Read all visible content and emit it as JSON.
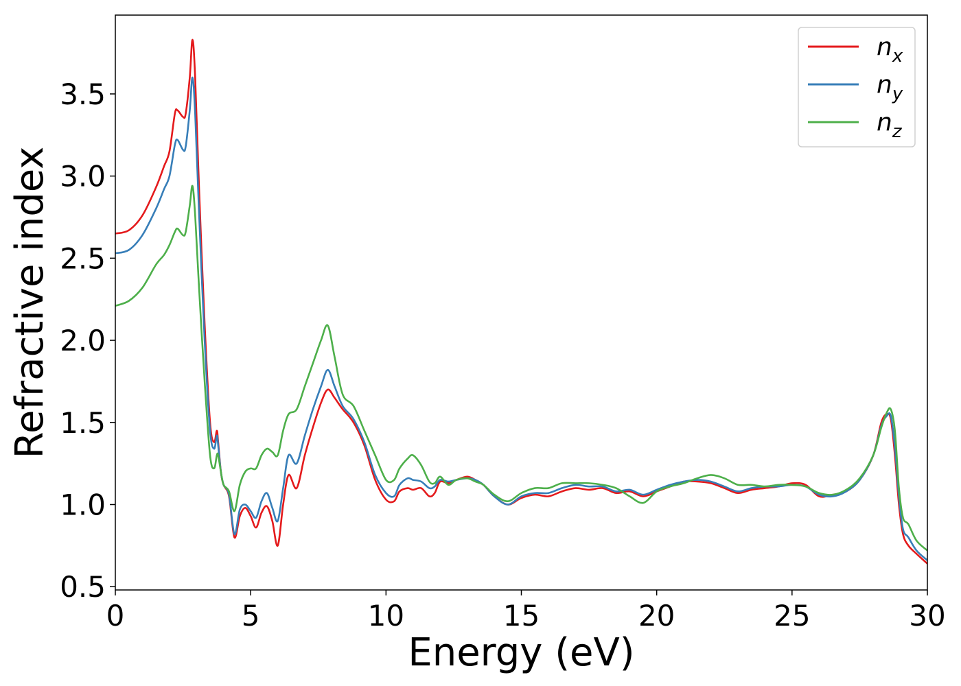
{
  "chart_data": {
    "type": "line",
    "title": "",
    "xlabel": "Energy (eV)",
    "ylabel": "Refractive index",
    "xlim": [
      0,
      30
    ],
    "ylim": [
      0.48,
      3.98
    ],
    "xticks": [
      0,
      5,
      10,
      15,
      20,
      25,
      30
    ],
    "xtick_labels": [
      "0",
      "5",
      "10",
      "15",
      "20",
      "25",
      "30"
    ],
    "yticks": [
      0.5,
      1.0,
      1.5,
      2.0,
      2.5,
      3.0,
      3.5
    ],
    "ytick_labels": [
      "0.5",
      "1.0",
      "1.5",
      "2.0",
      "2.5",
      "3.0",
      "3.5"
    ],
    "grid": false,
    "legend_position": "top-right",
    "series": [
      {
        "name": "n_x",
        "legend_main": "n",
        "legend_sub": "x",
        "color": "#e41a1c",
        "x": [
          0,
          0.5,
          1.0,
          1.5,
          1.8,
          2.0,
          2.2,
          2.3,
          2.5,
          2.6,
          2.75,
          2.85,
          2.95,
          3.1,
          3.3,
          3.5,
          3.65,
          3.75,
          3.8,
          3.9,
          4.0,
          4.2,
          4.4,
          4.6,
          4.8,
          5.0,
          5.2,
          5.4,
          5.6,
          5.8,
          6.0,
          6.2,
          6.4,
          6.7,
          7.0,
          7.3,
          7.6,
          7.85,
          8.1,
          8.4,
          8.8,
          9.2,
          9.6,
          10.0,
          10.3,
          10.5,
          10.8,
          11.0,
          11.3,
          11.6,
          11.8,
          12.0,
          12.3,
          12.6,
          13.0,
          13.3,
          13.6,
          14.0,
          14.5,
          15.0,
          15.5,
          16.0,
          16.5,
          17.0,
          17.5,
          18.0,
          18.5,
          19.0,
          19.5,
          20.0,
          20.5,
          21.0,
          21.5,
          22.0,
          22.5,
          23.0,
          23.5,
          24.0,
          24.5,
          25.0,
          25.5,
          26.0,
          26.5,
          27.0,
          27.5,
          28.0,
          28.3,
          28.5,
          28.65,
          28.8,
          28.95,
          29.1,
          29.3,
          29.6,
          30.0
        ],
        "values": [
          2.65,
          2.67,
          2.76,
          2.93,
          3.06,
          3.15,
          3.38,
          3.4,
          3.36,
          3.38,
          3.6,
          3.83,
          3.6,
          2.9,
          2.1,
          1.5,
          1.38,
          1.45,
          1.38,
          1.2,
          1.12,
          1.05,
          0.8,
          0.93,
          0.98,
          0.93,
          0.86,
          0.95,
          0.99,
          0.9,
          0.75,
          1.0,
          1.18,
          1.1,
          1.3,
          1.47,
          1.62,
          1.7,
          1.65,
          1.58,
          1.5,
          1.36,
          1.15,
          1.03,
          1.02,
          1.08,
          1.1,
          1.09,
          1.1,
          1.05,
          1.07,
          1.14,
          1.13,
          1.15,
          1.17,
          1.15,
          1.12,
          1.05,
          1.0,
          1.04,
          1.06,
          1.05,
          1.08,
          1.1,
          1.09,
          1.1,
          1.07,
          1.08,
          1.05,
          1.08,
          1.11,
          1.14,
          1.14,
          1.13,
          1.1,
          1.07,
          1.09,
          1.1,
          1.11,
          1.13,
          1.12,
          1.05,
          1.06,
          1.08,
          1.15,
          1.3,
          1.5,
          1.55,
          1.52,
          1.3,
          1.0,
          0.82,
          0.75,
          0.7,
          0.64
        ]
      },
      {
        "name": "n_y",
        "legend_main": "n",
        "legend_sub": "y",
        "color": "#377eb8",
        "x": [
          0,
          0.5,
          1.0,
          1.5,
          1.8,
          2.0,
          2.2,
          2.3,
          2.5,
          2.6,
          2.75,
          2.85,
          2.95,
          3.1,
          3.3,
          3.5,
          3.65,
          3.75,
          3.8,
          3.9,
          4.0,
          4.2,
          4.4,
          4.6,
          4.8,
          5.0,
          5.2,
          5.4,
          5.6,
          5.8,
          6.0,
          6.2,
          6.4,
          6.7,
          7.0,
          7.3,
          7.6,
          7.85,
          8.1,
          8.4,
          8.8,
          9.2,
          9.6,
          10.0,
          10.3,
          10.5,
          10.8,
          11.0,
          11.3,
          11.6,
          11.8,
          12.0,
          12.3,
          12.6,
          13.0,
          13.3,
          13.6,
          14.0,
          14.5,
          15.0,
          15.5,
          16.0,
          16.5,
          17.0,
          17.5,
          18.0,
          18.5,
          19.0,
          19.5,
          20.0,
          20.5,
          21.0,
          21.5,
          22.0,
          22.5,
          23.0,
          23.5,
          24.0,
          24.5,
          25.0,
          25.5,
          26.0,
          26.5,
          27.0,
          27.5,
          28.0,
          28.3,
          28.5,
          28.65,
          28.8,
          28.95,
          29.1,
          29.3,
          29.6,
          30.0
        ],
        "values": [
          2.53,
          2.55,
          2.64,
          2.8,
          2.92,
          3.0,
          3.19,
          3.22,
          3.16,
          3.18,
          3.4,
          3.6,
          3.38,
          2.75,
          2.0,
          1.45,
          1.34,
          1.42,
          1.36,
          1.2,
          1.12,
          1.06,
          0.82,
          0.97,
          1.0,
          0.96,
          0.92,
          1.02,
          1.07,
          0.98,
          0.9,
          1.1,
          1.3,
          1.25,
          1.42,
          1.58,
          1.72,
          1.82,
          1.72,
          1.6,
          1.52,
          1.38,
          1.18,
          1.07,
          1.05,
          1.12,
          1.16,
          1.15,
          1.14,
          1.1,
          1.11,
          1.15,
          1.14,
          1.15,
          1.16,
          1.15,
          1.12,
          1.05,
          1.0,
          1.05,
          1.07,
          1.07,
          1.1,
          1.12,
          1.11,
          1.11,
          1.08,
          1.09,
          1.06,
          1.09,
          1.12,
          1.14,
          1.15,
          1.14,
          1.11,
          1.08,
          1.1,
          1.11,
          1.11,
          1.12,
          1.11,
          1.06,
          1.05,
          1.08,
          1.15,
          1.3,
          1.48,
          1.54,
          1.54,
          1.35,
          1.05,
          0.85,
          0.8,
          0.72,
          0.66
        ]
      },
      {
        "name": "n_z",
        "legend_main": "n",
        "legend_sub": "z",
        "color": "#4daf4a",
        "x": [
          0,
          0.5,
          1.0,
          1.5,
          1.8,
          2.0,
          2.2,
          2.3,
          2.5,
          2.6,
          2.75,
          2.85,
          2.95,
          3.1,
          3.3,
          3.5,
          3.65,
          3.75,
          3.8,
          3.9,
          4.0,
          4.2,
          4.4,
          4.6,
          4.8,
          5.0,
          5.2,
          5.4,
          5.6,
          5.8,
          6.0,
          6.2,
          6.4,
          6.7,
          7.0,
          7.3,
          7.6,
          7.85,
          8.1,
          8.4,
          8.8,
          9.2,
          9.6,
          10.0,
          10.3,
          10.5,
          10.8,
          11.0,
          11.3,
          11.6,
          11.8,
          12.0,
          12.3,
          12.6,
          13.0,
          13.3,
          13.6,
          14.0,
          14.5,
          15.0,
          15.5,
          16.0,
          16.5,
          17.0,
          17.5,
          18.0,
          18.5,
          19.0,
          19.5,
          20.0,
          20.5,
          21.0,
          21.5,
          22.0,
          22.5,
          23.0,
          23.5,
          24.0,
          24.5,
          25.0,
          25.5,
          26.0,
          26.5,
          27.0,
          27.5,
          28.0,
          28.3,
          28.5,
          28.65,
          28.8,
          28.95,
          29.1,
          29.3,
          29.6,
          30.0
        ],
        "values": [
          2.21,
          2.24,
          2.32,
          2.46,
          2.52,
          2.58,
          2.66,
          2.68,
          2.64,
          2.66,
          2.82,
          2.94,
          2.76,
          2.3,
          1.75,
          1.3,
          1.22,
          1.3,
          1.3,
          1.2,
          1.12,
          1.08,
          0.96,
          1.12,
          1.2,
          1.22,
          1.22,
          1.3,
          1.34,
          1.32,
          1.3,
          1.45,
          1.55,
          1.58,
          1.72,
          1.86,
          2.0,
          2.09,
          1.9,
          1.67,
          1.6,
          1.45,
          1.3,
          1.15,
          1.15,
          1.22,
          1.28,
          1.3,
          1.24,
          1.14,
          1.13,
          1.17,
          1.12,
          1.15,
          1.16,
          1.14,
          1.12,
          1.06,
          1.02,
          1.07,
          1.1,
          1.1,
          1.13,
          1.13,
          1.13,
          1.12,
          1.1,
          1.05,
          1.01,
          1.08,
          1.11,
          1.13,
          1.16,
          1.18,
          1.16,
          1.12,
          1.12,
          1.11,
          1.12,
          1.12,
          1.11,
          1.07,
          1.06,
          1.09,
          1.16,
          1.3,
          1.47,
          1.56,
          1.58,
          1.45,
          1.1,
          0.92,
          0.88,
          0.78,
          0.72
        ]
      }
    ]
  }
}
